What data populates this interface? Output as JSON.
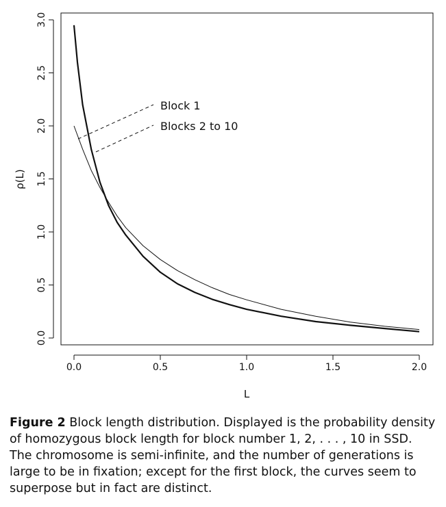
{
  "chart_data": {
    "type": "line",
    "xlabel": "L",
    "ylabel": "ρ(L)",
    "xlim": [
      0.0,
      2.0
    ],
    "ylim": [
      0.0,
      3.0
    ],
    "xticks": [
      0.0,
      0.5,
      1.0,
      1.5,
      2.0
    ],
    "xtick_labels": [
      "0.0",
      "0.5",
      "1.0",
      "1.5",
      "2.0"
    ],
    "yticks": [
      0.0,
      0.5,
      1.0,
      1.5,
      2.0,
      2.5,
      3.0
    ],
    "ytick_labels": [
      "0.0",
      "0.5",
      "1.0",
      "1.5",
      "2.0",
      "2.5",
      "3.0"
    ],
    "grid": false,
    "series": [
      {
        "name": "Block 1",
        "x": [
          0.0,
          0.05,
          0.1,
          0.15,
          0.2,
          0.25,
          0.3,
          0.4,
          0.5,
          0.6,
          0.7,
          0.8,
          0.9,
          1.0,
          1.2,
          1.4,
          1.6,
          1.8,
          2.0
        ],
        "values": [
          2.0,
          1.78,
          1.58,
          1.42,
          1.28,
          1.15,
          1.04,
          0.87,
          0.74,
          0.635,
          0.55,
          0.475,
          0.41,
          0.36,
          0.27,
          0.205,
          0.15,
          0.11,
          0.08
        ]
      },
      {
        "name": "Blocks 2 to 10",
        "x": [
          0.0,
          0.02,
          0.05,
          0.1,
          0.15,
          0.2,
          0.25,
          0.3,
          0.4,
          0.5,
          0.6,
          0.7,
          0.8,
          0.9,
          1.0,
          1.2,
          1.4,
          1.6,
          1.8,
          2.0
        ],
        "values": [
          2.95,
          2.6,
          2.2,
          1.78,
          1.47,
          1.25,
          1.09,
          0.97,
          0.77,
          0.62,
          0.51,
          0.43,
          0.365,
          0.315,
          0.27,
          0.205,
          0.155,
          0.12,
          0.09,
          0.06
        ]
      }
    ],
    "annotations": [
      "Block 1",
      "Blocks 2 to 10"
    ]
  },
  "caption": {
    "label": "Figure 2",
    "text": "Block length distribution. Displayed is the probability density of homozygous block length for block number 1, 2, . . . , 10 in SSD. The chromosome is semi-infinite, and the number of generations is large to be in fixation; except for the first block, the curves seem to superpose but in fact are distinct."
  }
}
